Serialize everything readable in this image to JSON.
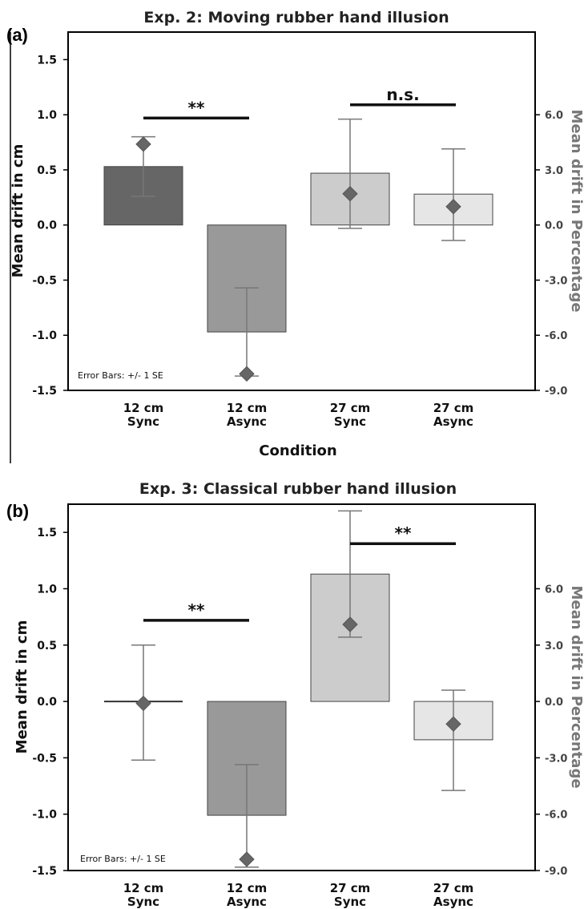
{
  "chart_data": [
    {
      "type": "bar",
      "panel_label": "(a)",
      "title": "Exp. 2: Moving rubber hand illusion",
      "xlabel": "Condition",
      "ylabel": "Mean drift in cm",
      "ylabel_right": "Mean drift in Percentage",
      "ylim": [
        -1.5,
        1.75
      ],
      "y_ticks": [
        -1.5,
        -1.0,
        -0.5,
        0.0,
        0.5,
        1.0,
        1.5
      ],
      "y_tick_labels": [
        "-1.5",
        "-1.0",
        "-0.5",
        "0.0",
        "0.5",
        "1.0",
        "1.5"
      ],
      "y2_ticks": [
        -9.0,
        -6.0,
        -3.0,
        0.0,
        3.0,
        6.0
      ],
      "y2_tick_labels": [
        "-9.0",
        "-6.0",
        "-3.0",
        "0.0",
        "3.0",
        "6.0"
      ],
      "categories": [
        {
          "line1": "12 cm",
          "line2": "Sync"
        },
        {
          "line1": "12 cm",
          "line2": "Async"
        },
        {
          "line1": "27 cm",
          "line2": "Sync"
        },
        {
          "line1": "27 cm",
          "line2": "Async"
        }
      ],
      "bars": [
        {
          "value": 0.53,
          "err_low": 0.26,
          "err_high": 0.8,
          "diamond_pct": 4.4,
          "color": "#666666"
        },
        {
          "value": -0.97,
          "err_low": -1.37,
          "err_high": -0.57,
          "diamond_pct": -8.1,
          "color": "#999999"
        },
        {
          "value": 0.47,
          "err_low": -0.03,
          "err_high": 0.96,
          "diamond_pct": 1.7,
          "color": "#cccccc"
        },
        {
          "value": 0.28,
          "err_low": -0.14,
          "err_high": 0.69,
          "diamond_pct": 1.0,
          "color": "#e6e6e6"
        }
      ],
      "significance": [
        {
          "from": 0,
          "to": 1,
          "y": 0.97,
          "label": "**"
        },
        {
          "from": 2,
          "to": 3,
          "y": 1.09,
          "label": "n.s."
        }
      ],
      "error_bar_note": "Error Bars: +/- 1 SE"
    },
    {
      "type": "bar",
      "panel_label": "(b)",
      "title": "Exp. 3: Classical rubber hand illusion",
      "xlabel": "",
      "ylabel": "Mean drift in cm",
      "ylabel_right": "Mean drift in Percentage",
      "ylim": [
        -1.5,
        1.75
      ],
      "y_ticks": [
        -1.5,
        -1.0,
        -0.5,
        0.0,
        0.5,
        1.0,
        1.5
      ],
      "y_tick_labels": [
        "-1.5",
        "-1.0",
        "-0.5",
        "0.0",
        "0.5",
        "1.0",
        "1.5"
      ],
      "y2_ticks": [
        -9.0,
        -6.0,
        -3.0,
        0.0,
        3.0,
        6.0
      ],
      "y2_tick_labels": [
        "-9.0",
        "-6.0",
        "-3.0",
        "0.0",
        "3.0",
        "6.0"
      ],
      "categories": [
        {
          "line1": "12 cm",
          "line2": "Sync"
        },
        {
          "line1": "12 cm",
          "line2": "Async"
        },
        {
          "line1": "27 cm",
          "line2": "Sync"
        },
        {
          "line1": "27 cm",
          "line2": "Async"
        }
      ],
      "bars": [
        {
          "value": 0.0,
          "err_low": -0.52,
          "err_high": 0.5,
          "diamond_pct": -0.1,
          "color": "#666666"
        },
        {
          "value": -1.01,
          "err_low": -1.47,
          "err_high": -0.56,
          "diamond_pct": -8.4,
          "color": "#999999"
        },
        {
          "value": 1.13,
          "err_low": 0.57,
          "err_high": 1.69,
          "diamond_pct": 4.1,
          "color": "#cccccc"
        },
        {
          "value": -0.34,
          "err_low": -0.79,
          "err_high": 0.1,
          "diamond_pct": -1.2,
          "color": "#e6e6e6"
        }
      ],
      "significance": [
        {
          "from": 0,
          "to": 1,
          "y": 0.72,
          "label": "**"
        },
        {
          "from": 2,
          "to": 3,
          "y": 1.4,
          "label": "**"
        }
      ],
      "error_bar_note": "Error Bars: +/- 1 SE"
    }
  ]
}
